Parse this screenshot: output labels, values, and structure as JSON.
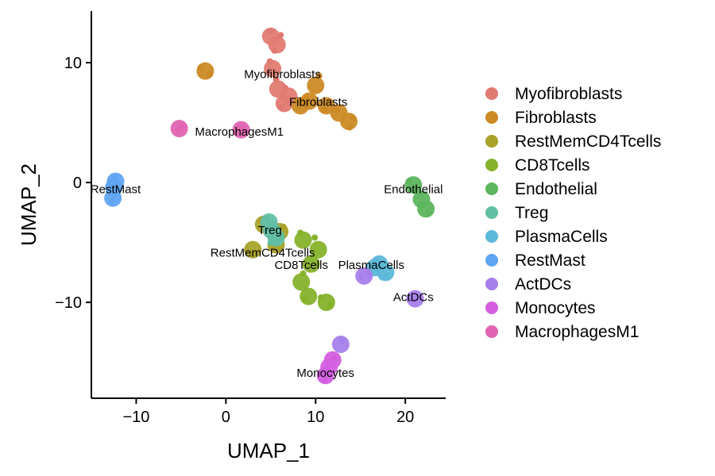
{
  "chart_data": {
    "type": "scatter",
    "title": "",
    "xlabel": "UMAP_1",
    "ylabel": "UMAP_2",
    "xlim": [
      -15,
      24.5
    ],
    "ylim": [
      -18,
      14.3
    ],
    "xticks": [
      -10,
      0,
      10,
      20
    ],
    "yticks": [
      -10,
      0,
      10
    ],
    "grid": false,
    "legend": "right",
    "series": [
      {
        "name": "Myofibroblasts",
        "color": "#E07B72",
        "centers": [
          [
            5.7,
            11.5
          ],
          [
            5.2,
            9.5
          ],
          [
            5.8,
            7.8
          ],
          [
            7.0,
            7.2
          ],
          [
            6.5,
            6.6
          ],
          [
            5.0,
            12.2
          ]
        ],
        "points": [
          [
            5.0,
            12.6
          ],
          [
            6.1,
            12.3
          ],
          [
            5.4,
            11.0
          ],
          [
            4.9,
            10.1
          ],
          [
            5.6,
            8.6
          ],
          [
            6.6,
            7.9
          ],
          [
            7.3,
            6.9
          ],
          [
            6.2,
            6.3
          ]
        ],
        "label": {
          "text": "Myofibroblasts",
          "x": 6.3,
          "y": 8.7
        }
      },
      {
        "name": "Fibroblasts",
        "color": "#CC8A25",
        "centers": [
          [
            10.0,
            8.1
          ],
          [
            9.3,
            6.8
          ],
          [
            11.2,
            6.4
          ],
          [
            12.6,
            5.8
          ],
          [
            13.7,
            5.1
          ],
          [
            8.3,
            6.4
          ],
          [
            -2.3,
            9.3
          ]
        ],
        "points": [
          [
            10.4,
            8.9
          ],
          [
            9.0,
            7.1
          ],
          [
            11.0,
            6.1
          ],
          [
            12.4,
            6.0
          ],
          [
            13.8,
            4.6
          ],
          [
            14.1,
            5.4
          ],
          [
            8.1,
            6.3
          ],
          [
            -2.8,
            9.6
          ],
          [
            -1.8,
            9.0
          ]
        ],
        "label": {
          "text": "Fibroblasts",
          "x": 10.3,
          "y": 6.4
        }
      },
      {
        "name": "RestMemCD4Tcells",
        "color": "#A9A229",
        "centers": [
          [
            4.2,
            -3.5
          ],
          [
            3.0,
            -5.6
          ],
          [
            5.6,
            -5.2
          ],
          [
            6.0,
            -4.1
          ]
        ],
        "points": [
          [
            4.0,
            -3.1
          ],
          [
            3.0,
            -6.0
          ],
          [
            5.7,
            -5.6
          ],
          [
            6.4,
            -3.7
          ]
        ],
        "label": {
          "text": "RestMemCD4Tcells",
          "x": 4.1,
          "y": -6.2
        }
      },
      {
        "name": "CD8Tcells",
        "color": "#86B22A",
        "centers": [
          [
            8.6,
            -4.8
          ],
          [
            9.5,
            -6.8
          ],
          [
            8.4,
            -8.3
          ],
          [
            9.2,
            -9.5
          ],
          [
            10.3,
            -5.6
          ],
          [
            11.2,
            -10.0
          ]
        ],
        "points": [
          [
            8.3,
            -4.2
          ],
          [
            9.9,
            -4.6
          ],
          [
            8.6,
            -7.6
          ],
          [
            8.8,
            -9.7
          ],
          [
            11.6,
            -10.3
          ],
          [
            10.6,
            -9.6
          ]
        ],
        "label": {
          "text": "CD8Tcells",
          "x": 8.4,
          "y": -7.2
        }
      },
      {
        "name": "Endothelial",
        "color": "#5DB55E",
        "centers": [
          [
            20.9,
            -0.2
          ],
          [
            21.8,
            -1.4
          ],
          [
            22.3,
            -2.2
          ]
        ],
        "points": [
          [
            20.4,
            0.1
          ],
          [
            21.3,
            -0.7
          ],
          [
            22.6,
            -2.5
          ]
        ],
        "label": {
          "text": "Endothelial",
          "x": 20.9,
          "y": -0.9
        }
      },
      {
        "name": "Treg",
        "color": "#61BFA4",
        "centers": [
          [
            5.1,
            -4.0
          ],
          [
            4.8,
            -3.3
          ],
          [
            5.6,
            -4.6
          ]
        ],
        "points": [
          [
            4.6,
            -3.0
          ],
          [
            5.8,
            -4.9
          ],
          [
            5.0,
            -5.0
          ]
        ],
        "label": {
          "text": "Treg",
          "x": 4.9,
          "y": -4.3
        }
      },
      {
        "name": "PlasmaCells",
        "color": "#5DB8D9",
        "centers": [
          [
            17.1,
            -6.8
          ],
          [
            17.8,
            -7.5
          ],
          [
            16.6,
            -7.1
          ]
        ],
        "points": [
          [
            16.7,
            -6.5
          ],
          [
            17.9,
            -7.8
          ],
          [
            17.4,
            -7.9
          ]
        ],
        "label": {
          "text": "PlasmaCells",
          "x": 16.2,
          "y": -7.2
        }
      },
      {
        "name": "RestMast",
        "color": "#5FA4F2",
        "centers": [
          [
            -12.5,
            -0.4
          ],
          [
            -12.6,
            -1.3
          ],
          [
            -12.3,
            0.1
          ]
        ],
        "points": [
          [
            -12.4,
            0.4
          ],
          [
            -12.7,
            -1.5
          ]
        ],
        "label": {
          "text": "RestMast",
          "x": -12.3,
          "y": -0.9
        }
      },
      {
        "name": "ActDCs",
        "color": "#A77FEB",
        "centers": [
          [
            15.4,
            -7.8
          ],
          [
            21.1,
            -9.7
          ],
          [
            12.8,
            -13.5
          ]
        ],
        "points": [
          [
            15.1,
            -7.9
          ],
          [
            15.9,
            -7.6
          ],
          [
            21.0,
            -9.9
          ],
          [
            12.9,
            -13.2
          ]
        ],
        "label": {
          "text": "ActDCs",
          "x": 20.9,
          "y": -9.9
        }
      },
      {
        "name": "Monocytes",
        "color": "#D35FE0",
        "centers": [
          [
            11.5,
            -15.4
          ],
          [
            11.1,
            -16.1
          ],
          [
            11.9,
            -14.8
          ]
        ],
        "points": [
          [
            11.0,
            -16.4
          ],
          [
            12.1,
            -14.6
          ]
        ],
        "label": {
          "text": "Monocytes",
          "x": 11.1,
          "y": -16.2
        }
      },
      {
        "name": "MacrophagesM1",
        "color": "#E064B2",
        "centers": [
          [
            1.7,
            4.4
          ],
          [
            -5.2,
            4.5
          ]
        ],
        "points": [
          [
            1.8,
            4.5
          ],
          [
            -5.3,
            4.4
          ],
          [
            -4.9,
            4.7
          ]
        ],
        "label": {
          "text": "MacrophagesM1",
          "x": 1.5,
          "y": 3.9
        }
      }
    ]
  }
}
